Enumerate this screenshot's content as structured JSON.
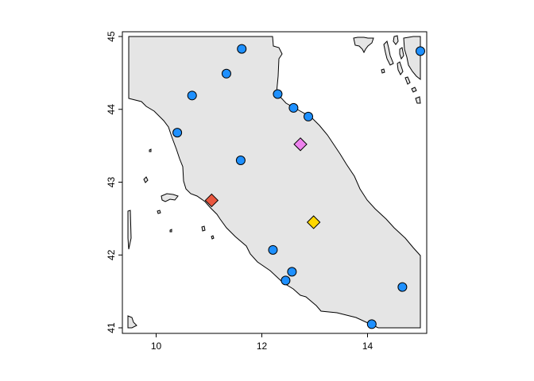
{
  "map": {
    "projection": "longitude-latitude",
    "xlim": [
      9.4,
      15.05
    ],
    "ylim": [
      40.95,
      45.05
    ],
    "land_fill": "#e5e5e5",
    "water_fill": "#ffffff",
    "coast_color": "#000000",
    "x_ticks": [
      {
        "value": 10,
        "label": "10"
      },
      {
        "value": 12,
        "label": "12"
      },
      {
        "value": 14,
        "label": "14"
      }
    ],
    "y_ticks": [
      {
        "value": 41,
        "label": "41"
      },
      {
        "value": 42,
        "label": "42"
      },
      {
        "value": 43,
        "label": "43"
      },
      {
        "value": 44,
        "label": "44"
      },
      {
        "value": 45,
        "label": "45"
      }
    ],
    "circle_color": "#1e90ff",
    "circle_points": [
      {
        "lon": 11.62,
        "lat": 44.83
      },
      {
        "lon": 11.33,
        "lat": 44.49
      },
      {
        "lon": 10.68,
        "lat": 44.19
      },
      {
        "lon": 12.3,
        "lat": 44.21
      },
      {
        "lon": 12.6,
        "lat": 44.02
      },
      {
        "lon": 12.88,
        "lat": 43.9
      },
      {
        "lon": 10.4,
        "lat": 43.68
      },
      {
        "lon": 11.6,
        "lat": 43.3
      },
      {
        "lon": 12.21,
        "lat": 42.07
      },
      {
        "lon": 12.57,
        "lat": 41.77
      },
      {
        "lon": 12.45,
        "lat": 41.65
      },
      {
        "lon": 14.66,
        "lat": 41.56
      },
      {
        "lon": 14.08,
        "lat": 41.05
      },
      {
        "lon": 15.0,
        "lat": 44.8
      }
    ],
    "diamond_points": [
      {
        "lon": 12.73,
        "lat": 43.52,
        "color": "#ee82ee"
      },
      {
        "lon": 11.05,
        "lat": 42.75,
        "color": "#e9573f"
      },
      {
        "lon": 12.98,
        "lat": 42.45,
        "color": "#ffd700"
      }
    ]
  }
}
